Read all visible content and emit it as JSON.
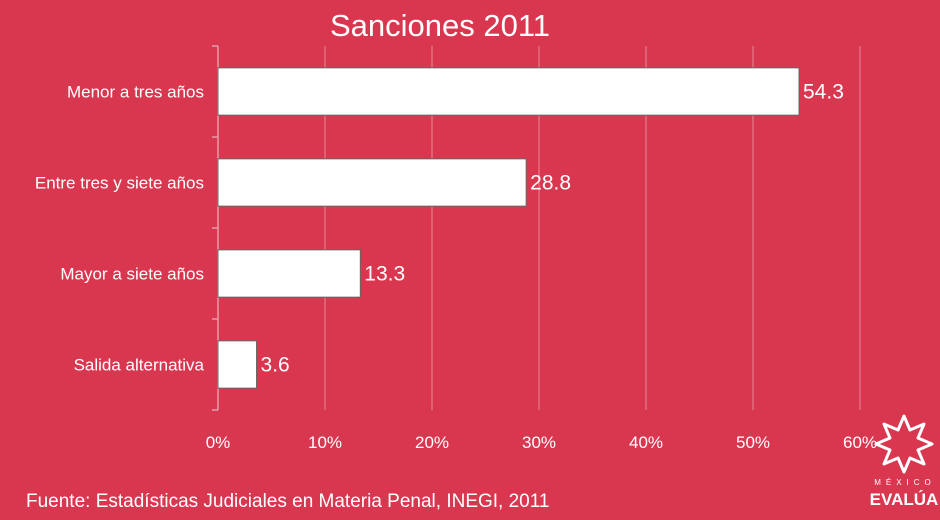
{
  "chart_data": {
    "type": "bar",
    "orientation": "horizontal",
    "title": "Sanciones 2011",
    "categories": [
      "Menor a tres años",
      "Entre tres y siete años",
      "Mayor a siete años",
      "Salida alternativa"
    ],
    "values": [
      54.3,
      28.8,
      13.3,
      3.6
    ],
    "data_labels": [
      "54.3",
      "28.8",
      "13.3",
      "3.6"
    ],
    "x_ticks": [
      "0%",
      "10%",
      "20%",
      "30%",
      "40%",
      "50%",
      "60%"
    ],
    "xlim": [
      0,
      60
    ],
    "grid": true,
    "xlabel": "",
    "ylabel": ""
  },
  "footer": {
    "source": "Fuente: Estadísticas Judiciales en Materia Penal, INEGI, 2011"
  },
  "logo": {
    "small_text": "MÉXICO",
    "big_text": "EVALÚA"
  },
  "colors": {
    "background": "#d9374f",
    "bar_fill": "#ffffff",
    "bar_stroke": "#666666",
    "gridline": "#e58a95",
    "axis": "#e0a0a8",
    "text": "#ffffff"
  }
}
